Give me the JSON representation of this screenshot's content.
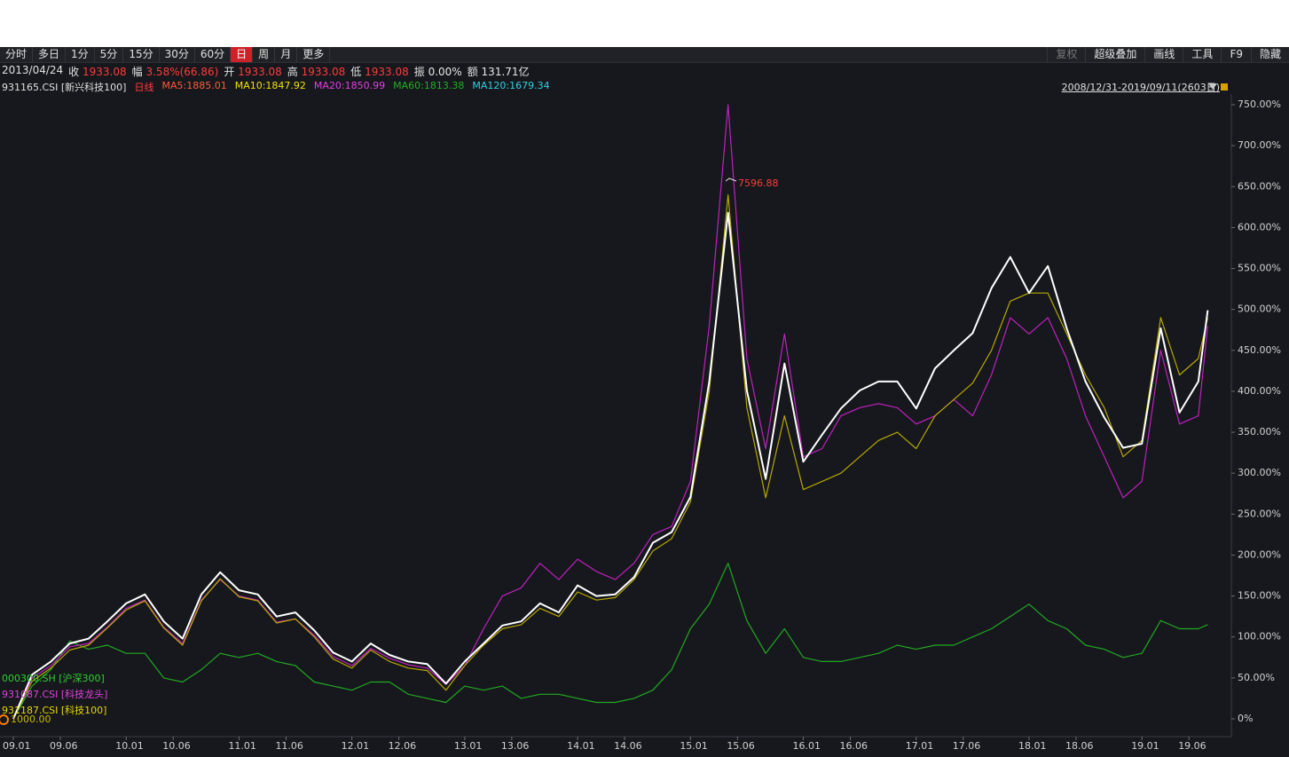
{
  "toolbar": {
    "left": [
      "分时",
      "多日",
      "1分",
      "5分",
      "15分",
      "30分",
      "60分",
      "日",
      "周",
      "月",
      "更多"
    ],
    "right": [
      "复权",
      "超级叠加",
      "画线",
      "工具",
      "F9",
      "隐藏"
    ]
  },
  "info": {
    "date": "2013/04/24",
    "items": [
      {
        "label": "收",
        "value": "1933.08",
        "color": "#ff3b3b"
      },
      {
        "label": "幅",
        "value": "3.58%(66.86)",
        "color": "#ff3b3b"
      },
      {
        "label": "开",
        "value": "1933.08",
        "color": "#ff3b3b"
      },
      {
        "label": "高",
        "value": "1933.08",
        "color": "#ff3b3b"
      },
      {
        "label": "低",
        "value": "1933.08",
        "color": "#ff3b3b"
      },
      {
        "label": "振",
        "value": "0.00%",
        "color": "#e6e6e6"
      },
      {
        "label": "额",
        "value": "131.71亿",
        "color": "#e6e6e6"
      }
    ]
  },
  "indicators": [
    {
      "text": "日线",
      "color": "#ff3b3b"
    },
    {
      "text": "MA5:1885.01",
      "color": "#ff5a3c"
    },
    {
      "text": "MA10:1847.92",
      "color": "#f0e000"
    },
    {
      "text": "MA20:1850.99",
      "color": "#e040e0"
    },
    {
      "text": "MA60:1813.38",
      "color": "#20b020"
    },
    {
      "text": "MA120:1679.34",
      "color": "#30d0e0"
    }
  ],
  "range": "2008/12/31-2019/09/11(2603日)",
  "chart_data": {
    "type": "line",
    "base_label": "1000.00",
    "annotation": "7596.88",
    "x": [
      "09.01",
      "09.03",
      "09.05",
      "09.07",
      "09.09",
      "09.11",
      "10.01",
      "10.03",
      "10.05",
      "10.07",
      "10.09",
      "10.11",
      "11.01",
      "11.03",
      "11.05",
      "11.07",
      "11.09",
      "11.11",
      "12.01",
      "12.03",
      "12.05",
      "12.07",
      "12.09",
      "12.11",
      "13.01",
      "13.03",
      "13.05",
      "13.07",
      "13.09",
      "13.11",
      "14.01",
      "14.03",
      "14.05",
      "14.07",
      "14.09",
      "14.11",
      "15.01",
      "15.03",
      "15.05",
      "15.07",
      "15.09",
      "15.11",
      "16.01",
      "16.03",
      "16.05",
      "16.07",
      "16.09",
      "16.11",
      "17.01",
      "17.03",
      "17.05",
      "17.07",
      "17.09",
      "17.11",
      "18.01",
      "18.03",
      "18.05",
      "18.07",
      "18.09",
      "18.11",
      "19.01",
      "19.03",
      "19.05",
      "19.07",
      "19.08"
    ],
    "xlim": [
      "09.01",
      "19.09"
    ],
    "xticks": [
      "09.01",
      "09.06",
      "10.01",
      "10.06",
      "11.01",
      "11.06",
      "12.01",
      "12.06",
      "13.01",
      "13.06",
      "14.01",
      "14.06",
      "15.01",
      "15.06",
      "16.01",
      "16.06",
      "17.01",
      "17.06",
      "18.01",
      "18.06",
      "19.01",
      "19.06"
    ],
    "ylim": [
      0,
      750
    ],
    "yticks": [
      {
        "value": 0,
        "label": "0%"
      },
      {
        "value": 50,
        "label": "50.00%"
      },
      {
        "value": 100,
        "label": "100.00%"
      },
      {
        "value": 150,
        "label": "150.00%"
      },
      {
        "value": 200,
        "label": "200.00%"
      },
      {
        "value": 250,
        "label": "250.00%"
      },
      {
        "value": 300,
        "label": "300.00%"
      },
      {
        "value": 350,
        "label": "350.00%"
      },
      {
        "value": 400,
        "label": "400.00%"
      },
      {
        "value": 450,
        "label": "450.00%"
      },
      {
        "value": 500,
        "label": "500.00%"
      },
      {
        "value": 550,
        "label": "550.00%"
      },
      {
        "value": 600,
        "label": "600.00%"
      },
      {
        "value": 650,
        "label": "650.00%"
      },
      {
        "value": 700,
        "label": "700.00%"
      },
      {
        "value": 750,
        "label": "750.00%"
      }
    ],
    "series": [
      {
        "name": "000300.SH [沪深300]",
        "color": "#22a822",
        "values": [
          0,
          40,
          60,
          95,
          85,
          90,
          80,
          80,
          50,
          45,
          60,
          80,
          75,
          80,
          70,
          65,
          45,
          40,
          35,
          45,
          45,
          30,
          25,
          20,
          40,
          35,
          40,
          25,
          30,
          30,
          25,
          20,
          20,
          25,
          35,
          60,
          110,
          140,
          190,
          120,
          80,
          110,
          75,
          70,
          70,
          75,
          80,
          90,
          85,
          90,
          90,
          100,
          110,
          125,
          140,
          120,
          110,
          90,
          85,
          75,
          80,
          120,
          110,
          110,
          115
        ]
      },
      {
        "name": "931087.CSI [科技龙头]",
        "color": "#c020c0",
        "values": [
          0,
          50,
          65,
          88,
          92,
          112,
          135,
          145,
          112,
          92,
          145,
          170,
          150,
          145,
          118,
          122,
          102,
          76,
          65,
          86,
          74,
          66,
          62,
          42,
          65,
          110,
          150,
          160,
          190,
          170,
          195,
          180,
          170,
          190,
          225,
          235,
          290,
          480,
          750,
          440,
          330,
          470,
          320,
          330,
          370,
          380,
          385,
          380,
          360,
          370,
          390,
          370,
          420,
          490,
          470,
          490,
          440,
          370,
          320,
          270,
          290,
          450,
          360,
          370,
          480
        ]
      },
      {
        "name": "931187.CSI [科技100]",
        "color": "#b8a800",
        "values": [
          0,
          46,
          62,
          84,
          90,
          111,
          133,
          144,
          111,
          90,
          144,
          171,
          149,
          144,
          117,
          122,
          100,
          73,
          62,
          84,
          70,
          62,
          59,
          35,
          65,
          90,
          110,
          115,
          135,
          125,
          155,
          145,
          148,
          170,
          205,
          220,
          265,
          400,
          640,
          380,
          270,
          370,
          280,
          290,
          300,
          320,
          340,
          350,
          330,
          370,
          390,
          410,
          450,
          510,
          520,
          520,
          470,
          420,
          380,
          320,
          340,
          490,
          420,
          440,
          490
        ]
      },
      {
        "name": "931165.CSI [新兴科技100]",
        "color": "#ffffff",
        "values": [
          0,
          54,
          70,
          92,
          98,
          119,
          141,
          152,
          119,
          98,
          152,
          179,
          157,
          152,
          125,
          130,
          108,
          81,
          70,
          92,
          78,
          70,
          67,
          43,
          70,
          92,
          114,
          119,
          141,
          130,
          163,
          150,
          152,
          173,
          215,
          228,
          271,
          412,
          618,
          401,
          293,
          434,
          314,
          347,
          379,
          401,
          412,
          412,
          379,
          428,
          450,
          471,
          526,
          564,
          520,
          553,
          477,
          412,
          368,
          331,
          336,
          477,
          374,
          412,
          499
        ]
      }
    ]
  }
}
